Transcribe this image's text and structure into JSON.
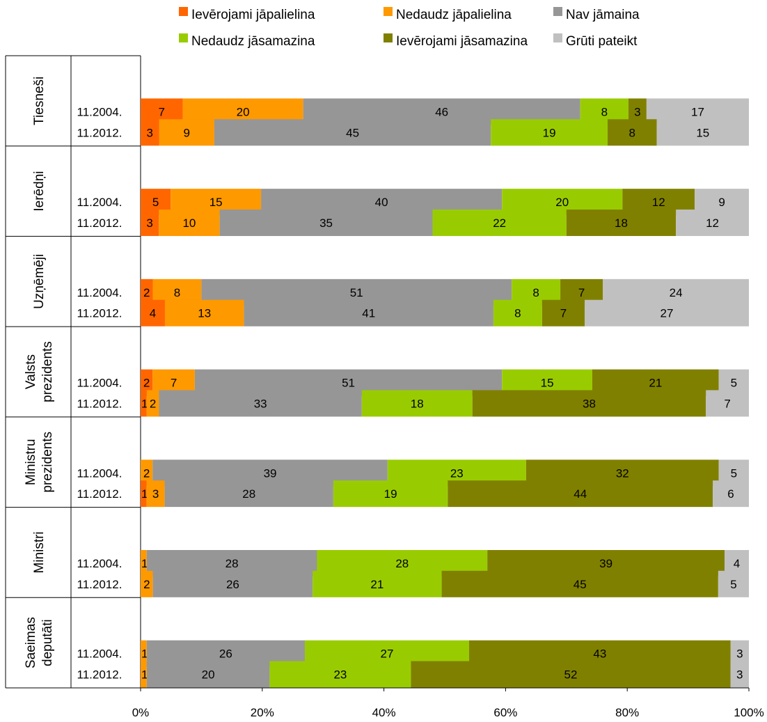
{
  "chart_data": {
    "type": "bar",
    "orientation": "horizontal",
    "stacked": "percent",
    "legend_position": "top",
    "grid": false,
    "xlim": [
      0,
      100
    ],
    "x_tick_labels": [
      "0%",
      "20%",
      "40%",
      "60%",
      "80%",
      "100%"
    ],
    "legend": [
      {
        "name": "Ievērojami jāpalielina",
        "color": "#ff6600"
      },
      {
        "name": "Nedaudz jāpalielina",
        "color": "#ff9900"
      },
      {
        "name": "Nav jāmaina",
        "color": "#969696"
      },
      {
        "name": "Nedaudz jāsamazina",
        "color": "#99cc00"
      },
      {
        "name": "Ievērojami jāsamazina",
        "color": "#808000"
      },
      {
        "name": "Grūti pateikt",
        "color": "#c0c0c0"
      }
    ],
    "groups": [
      {
        "label": [
          "Tiesneši"
        ],
        "rows": [
          {
            "period": "11.2004.",
            "values": [
              7,
              20,
              46,
              8,
              3,
              17
            ]
          },
          {
            "period": "11.2012.",
            "values": [
              3,
              9,
              45,
              19,
              8,
              15
            ]
          }
        ]
      },
      {
        "label": [
          "Ierēdņi"
        ],
        "rows": [
          {
            "period": "11.2004.",
            "values": [
              5,
              15,
              40,
              20,
              12,
              9
            ]
          },
          {
            "period": "11.2012.",
            "values": [
              3,
              10,
              35,
              22,
              18,
              12
            ]
          }
        ]
      },
      {
        "label": [
          "Uzņēmēji"
        ],
        "rows": [
          {
            "period": "11.2004.",
            "values": [
              2,
              8,
              51,
              8,
              7,
              24
            ]
          },
          {
            "period": "11.2012.",
            "values": [
              4,
              13,
              41,
              8,
              7,
              27
            ]
          }
        ]
      },
      {
        "label": [
          "Valsts",
          "prezidents"
        ],
        "rows": [
          {
            "period": "11.2004.",
            "values": [
              2,
              7,
              51,
              15,
              21,
              5
            ]
          },
          {
            "period": "11.2012.",
            "values": [
              1,
              2,
              33,
              18,
              38,
              7
            ]
          }
        ]
      },
      {
        "label": [
          "Ministru",
          "prezidents"
        ],
        "rows": [
          {
            "period": "11.2004.",
            "values": [
              0,
              2,
              39,
              23,
              32,
              5
            ]
          },
          {
            "period": "11.2012.",
            "values": [
              1,
              3,
              28,
              19,
              44,
              6
            ]
          }
        ]
      },
      {
        "label": [
          "Ministri"
        ],
        "rows": [
          {
            "period": "11.2004.",
            "values": [
              0,
              1,
              28,
              28,
              39,
              4
            ]
          },
          {
            "period": "11.2012.",
            "values": [
              0,
              2,
              26,
              21,
              45,
              5
            ]
          }
        ]
      },
      {
        "label": [
          "Saeimas",
          "deputāti"
        ],
        "rows": [
          {
            "period": "11.2004.",
            "values": [
              0,
              1,
              26,
              27,
              43,
              3
            ]
          },
          {
            "period": "11.2012.",
            "values": [
              0,
              1,
              20,
              23,
              52,
              3
            ]
          }
        ]
      }
    ]
  }
}
